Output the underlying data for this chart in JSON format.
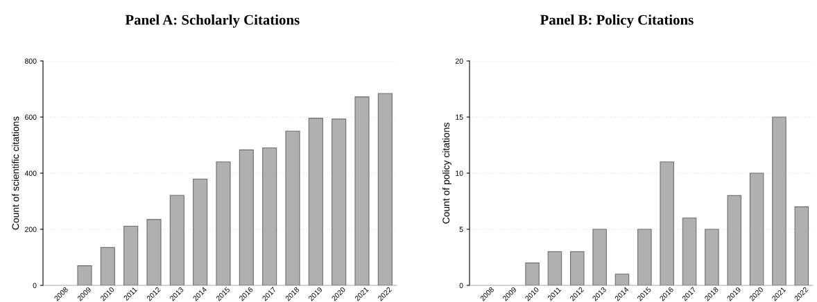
{
  "chart_data": [
    {
      "type": "bar",
      "title": "Panel A: Scholarly Citations",
      "ylabel": "Count of scientific citations",
      "categories": [
        "2008",
        "2009",
        "2010",
        "2011",
        "2012",
        "2013",
        "2014",
        "2015",
        "2016",
        "2017",
        "2018",
        "2019",
        "2020",
        "2021",
        "2022"
      ],
      "values": [
        0,
        70,
        135,
        211,
        235,
        321,
        379,
        440,
        483,
        490,
        550,
        596,
        593,
        672,
        684
      ],
      "color": "#b0b0b0",
      "ylim": [
        0,
        800
      ],
      "yticks": [
        0,
        200,
        400,
        600,
        800
      ],
      "grid": "y"
    },
    {
      "type": "bar",
      "title": "Panel B: Policy Citations",
      "ylabel": "Count of policy citations",
      "categories": [
        "2008",
        "2009",
        "2010",
        "2011",
        "2012",
        "2013",
        "2014",
        "2015",
        "2016",
        "2017",
        "2018",
        "2019",
        "2020",
        "2021",
        "2022"
      ],
      "values": [
        0,
        0,
        2,
        3,
        3,
        5,
        1,
        5,
        11,
        6,
        5,
        8,
        10,
        15,
        7
      ],
      "color": "#b0b0b0",
      "ylim": [
        0,
        20
      ],
      "yticks": [
        0,
        5,
        10,
        15,
        20
      ],
      "grid": "y"
    }
  ]
}
